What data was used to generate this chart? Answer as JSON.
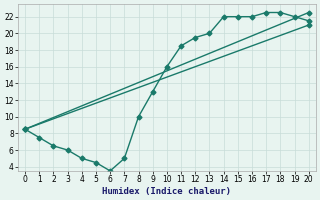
{
  "xlabel": "Humidex (Indice chaleur)",
  "xlim": [
    -0.5,
    20.5
  ],
  "ylim": [
    3.5,
    23.5
  ],
  "xticks": [
    0,
    1,
    2,
    3,
    4,
    5,
    6,
    7,
    8,
    9,
    10,
    11,
    12,
    13,
    14,
    15,
    16,
    17,
    18,
    19,
    20
  ],
  "yticks": [
    4,
    6,
    8,
    10,
    12,
    14,
    16,
    18,
    20,
    22
  ],
  "bg_color": "#e8f4f0",
  "line_color": "#1a7a6a",
  "grid_color": "#c8ddd8",
  "line1_x": [
    0,
    1,
    2,
    3,
    4,
    5,
    6,
    7,
    8,
    9,
    10,
    11,
    12,
    13,
    14,
    15,
    16,
    17,
    18,
    19,
    20
  ],
  "line1_y": [
    8.5,
    7.5,
    6.5,
    6.0,
    5.0,
    4.5,
    3.5,
    5.0,
    10.0,
    13.0,
    16.0,
    18.5,
    19.5,
    20.0,
    22.0,
    22.0,
    22.0,
    22.5,
    22.5,
    22.0,
    21.5
  ],
  "line2_x": [
    0,
    20
  ],
  "line2_y": [
    8.5,
    21.0
  ],
  "line3_x": [
    0,
    20
  ],
  "line3_y": [
    8.5,
    22.5
  ],
  "marker_size": 2.5,
  "linewidth": 1.0,
  "tick_fontsize": 5.5,
  "xlabel_fontsize": 6.5
}
